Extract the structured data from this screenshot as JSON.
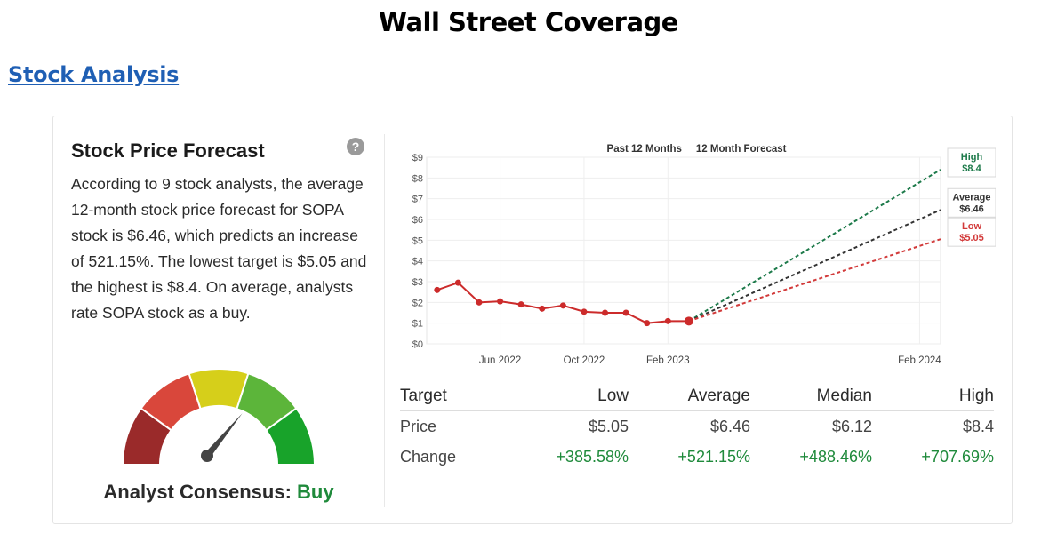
{
  "page": {
    "title": "Wall Street Coverage",
    "section_link": "Stock Analysis"
  },
  "forecast": {
    "title": "Stock Price Forecast",
    "help_icon": "question-circle-icon",
    "description": "According to 9 stock analysts, the average 12-month stock price forecast for SOPA stock is $6.46, which predicts an increase of 521.15%. The lowest target is $5.05 and the highest is $8.4. On average, analysts rate SOPA stock as a buy."
  },
  "consensus": {
    "label": "Analyst Consensus:",
    "rating": "Buy",
    "gauge_value": 0.72
  },
  "chart_data": {
    "type": "line",
    "header_left": "Past 12 Months",
    "header_right": "12 Month Forecast",
    "y_ticks": [
      "$0",
      "$1",
      "$2",
      "$3",
      "$4",
      "$5",
      "$6",
      "$7",
      "$8",
      "$9"
    ],
    "ylim": [
      0,
      9
    ],
    "x_ticks": [
      {
        "label": "Jun 2022",
        "x": 3
      },
      {
        "label": "Oct 2022",
        "x": 7
      },
      {
        "label": "Feb 2023",
        "x": 11
      },
      {
        "label": "Feb 2024",
        "x": 23
      }
    ],
    "xlim": [
      -0.5,
      24
    ],
    "history": {
      "name": "Price",
      "x": [
        0,
        1,
        2,
        3,
        4,
        5,
        6,
        7,
        8,
        9,
        10,
        11,
        12
      ],
      "values": [
        2.6,
        2.95,
        2.0,
        2.05,
        1.9,
        1.7,
        1.85,
        1.55,
        1.5,
        1.5,
        1.0,
        1.1,
        1.1
      ]
    },
    "forecast": {
      "start_x": 12,
      "end_x": 24,
      "start_value": 1.1,
      "lines": [
        {
          "name": "High",
          "value": 8.4,
          "label": "$8.4",
          "color": "#1d7a4a"
        },
        {
          "name": "Average",
          "value": 6.46,
          "label": "$6.46",
          "color": "#333333"
        },
        {
          "name": "Low",
          "value": 5.05,
          "label": "$5.05",
          "color": "#d23a3a"
        }
      ]
    },
    "line_color": "#cc2b2b"
  },
  "targets": {
    "headers": [
      "Target",
      "Low",
      "Average",
      "Median",
      "High"
    ],
    "price": [
      "Price",
      "$5.05",
      "$6.46",
      "$6.12",
      "$8.4"
    ],
    "change": [
      "Change",
      "+385.58%",
      "+521.15%",
      "+488.46%",
      "+707.69%"
    ]
  },
  "colors": {
    "buy": "#1f8a3b",
    "link": "#1f5fb4"
  }
}
